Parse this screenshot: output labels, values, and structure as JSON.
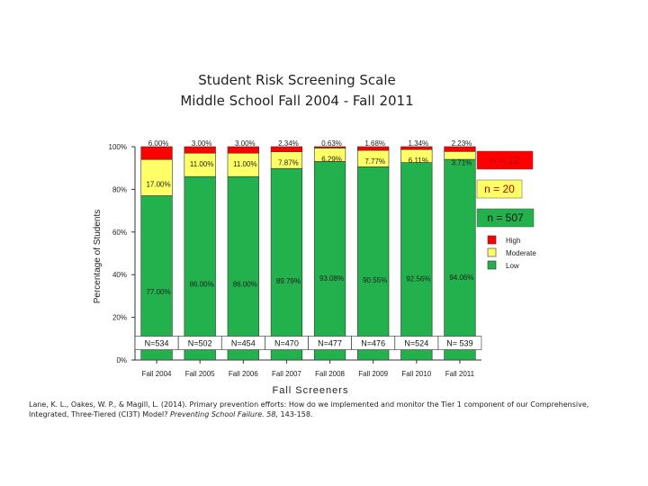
{
  "chart_data": {
    "type": "bar",
    "stacked": true,
    "title": [
      "Student Risk Screening Scale",
      "Middle School Fall 2004  -  Fall 2011"
    ],
    "xlabel": "Fall Screeners",
    "ylabel": "Percentage of Students",
    "ylim": [
      0,
      100
    ],
    "yticks": [
      "0%",
      "20%",
      "40%",
      "60%",
      "80%",
      "100%"
    ],
    "categories": [
      "Fall 2004",
      "Fall 2005",
      "Fall 2006",
      "Fall 2007",
      "Fall 2008",
      "Fall 2009",
      "Fall 2010",
      "Fall 2011"
    ],
    "series": [
      {
        "name": "Low",
        "color": "#22b14c",
        "values": [
          77.0,
          86.0,
          86.0,
          89.79,
          93.08,
          90.55,
          92.56,
          94.06
        ],
        "labels": [
          "77.00%",
          "86.00%",
          "86.00%",
          "89.79%",
          "93.08%",
          "90.55%",
          "92.56%",
          "94.06%"
        ]
      },
      {
        "name": "Moderate",
        "color": "#ffff66",
        "values": [
          17.0,
          11.0,
          11.0,
          7.87,
          6.29,
          7.77,
          6.11,
          3.71
        ],
        "labels": [
          "17.00%",
          "11.00%",
          "11.00%",
          "7.87%",
          "6.29%",
          "7.77%",
          "6.11%",
          "3.71%"
        ]
      },
      {
        "name": "High",
        "color": "#ff0000",
        "values": [
          6.0,
          3.0,
          3.0,
          2.34,
          0.63,
          1.68,
          1.34,
          2.23
        ],
        "labels": [
          "6.00%",
          "3.00%",
          "3.00%",
          "2.34%",
          "0.63%",
          "1.68%",
          "1.34%",
          "2.23%"
        ]
      }
    ],
    "n_labels": [
      "N=534",
      "N=502",
      "N=454",
      "N=470",
      "N=477",
      "N=476",
      "N=524",
      "N= 539"
    ],
    "legend_entries": [
      "High",
      "Moderate",
      "Low"
    ],
    "legend_position": "right",
    "annotations": [
      {
        "text": "n = 12",
        "color": "#ff0000",
        "text_color": "#c00000"
      },
      {
        "text": "n = 20",
        "color": "#ffff66",
        "text_color": "#c00000"
      },
      {
        "text": "n = 507",
        "color": "#22b14c",
        "text_color": "#111111"
      }
    ],
    "grid": false
  },
  "citation": {
    "text_before": "Lane, K. L., Oakes, W. P., & Magill, L. (2014). Primary prevention efforts: How do we implemented and monitor the Tier 1 component of our Comprehensive, Integrated, Three-Tiered (CI3T) Model? ",
    "journal": "Preventing School Failure. 58,",
    "text_after": " 143-158."
  }
}
